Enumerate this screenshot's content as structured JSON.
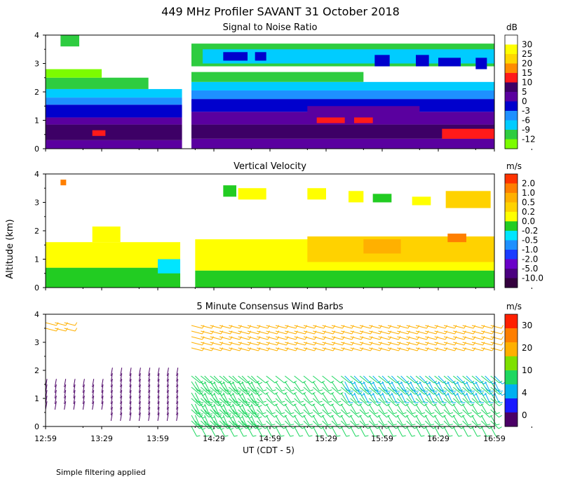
{
  "figure": {
    "title": "449 MHz Profiler SAVANT 31 October 2018",
    "ylabel": "Altitude (km)",
    "xlabel": "UT  (CDT - 5)",
    "footnote": "Simple filtering applied"
  },
  "colors": {
    "snr": [
      "#7cfc00",
      "#2ecc40",
      "#00ccff",
      "#1e90ff",
      "#0000cd",
      "#5a009f",
      "#3d0066",
      "#ff1a1a",
      "#ff8c00",
      "#ffd700",
      "#ffff00",
      "#ffffff"
    ],
    "vel": [
      "#33003d",
      "#4b0080",
      "#6a00c8",
      "#1a3cff",
      "#1e90ff",
      "#00e5ff",
      "#22cc22",
      "#ffff00",
      "#ffd200",
      "#ffb000",
      "#ff7f00",
      "#ff3300"
    ],
    "wind": [
      "#4b0066",
      "#1a1aff",
      "#00b0f0",
      "#1ed760",
      "#7ee000",
      "#ffb000",
      "#ff7f00",
      "#ff2000"
    ]
  },
  "chart_data": [
    {
      "type": "heatmap",
      "title": "Signal to Noise Ratio",
      "xlim": [
        0,
        240
      ],
      "ylim": [
        0,
        4
      ],
      "yticks": [
        "0",
        "1",
        "2",
        "3",
        "4"
      ],
      "xticks": [
        {
          "v": 0,
          "label": "12:59"
        },
        {
          "v": 30,
          "label": "13:29"
        },
        {
          "v": 60,
          "label": "13:59"
        },
        {
          "v": 90,
          "label": "14:29"
        },
        {
          "v": 120,
          "label": "14:59"
        },
        {
          "v": 150,
          "label": "15:29"
        },
        {
          "v": 180,
          "label": "15:59"
        },
        {
          "v": 210,
          "label": "16:29"
        },
        {
          "v": 240,
          "label": "16:59"
        }
      ],
      "colorbar": {
        "unit": "dB",
        "labels": [
          "30",
          "25",
          "20",
          "15",
          "10",
          "5",
          "0",
          "-3",
          "-6",
          "-9",
          "-12"
        ]
      },
      "gap": [
        73,
        78
      ],
      "regions": [
        {
          "t": [
            0,
            73
          ],
          "alt": [
            0,
            0.3
          ],
          "level": 5
        },
        {
          "t": [
            0,
            73
          ],
          "alt": [
            0.3,
            0.85
          ],
          "level": 6
        },
        {
          "t": [
            0,
            73
          ],
          "alt": [
            0.85,
            1.1
          ],
          "level": 5
        },
        {
          "t": [
            0,
            73
          ],
          "alt": [
            1.1,
            1.55
          ],
          "level": 4
        },
        {
          "t": [
            0,
            73
          ],
          "alt": [
            1.55,
            1.8
          ],
          "level": 3
        },
        {
          "t": [
            0,
            73
          ],
          "alt": [
            1.8,
            2.1
          ],
          "level": 2
        },
        {
          "t": [
            0,
            55
          ],
          "alt": [
            2.1,
            2.5
          ],
          "level": 1
        },
        {
          "t": [
            0,
            30
          ],
          "alt": [
            2.5,
            2.8
          ],
          "level": 0
        },
        {
          "t": [
            25,
            32
          ],
          "alt": [
            0.45,
            0.65
          ],
          "level": 7
        },
        {
          "t": [
            8,
            18
          ],
          "alt": [
            3.6,
            4.0
          ],
          "level": 1
        },
        {
          "t": [
            78,
            240
          ],
          "alt": [
            0,
            0.35
          ],
          "level": 5
        },
        {
          "t": [
            78,
            240
          ],
          "alt": [
            0.35,
            0.85
          ],
          "level": 6
        },
        {
          "t": [
            78,
            240
          ],
          "alt": [
            0.85,
            1.3
          ],
          "level": 5
        },
        {
          "t": [
            78,
            240
          ],
          "alt": [
            1.3,
            1.75
          ],
          "level": 4
        },
        {
          "t": [
            78,
            240
          ],
          "alt": [
            1.75,
            2.05
          ],
          "level": 3
        },
        {
          "t": [
            78,
            240
          ],
          "alt": [
            2.05,
            2.35
          ],
          "level": 2
        },
        {
          "t": [
            78,
            170
          ],
          "alt": [
            2.35,
            2.7
          ],
          "level": 1
        },
        {
          "t": [
            78,
            240
          ],
          "alt": [
            2.9,
            3.7
          ],
          "level": 1
        },
        {
          "t": [
            84,
            240
          ],
          "alt": [
            3.0,
            3.5
          ],
          "level": 2
        },
        {
          "t": [
            95,
            108
          ],
          "alt": [
            3.1,
            3.4
          ],
          "level": 4
        },
        {
          "t": [
            112,
            118
          ],
          "alt": [
            3.1,
            3.4
          ],
          "level": 4
        },
        {
          "t": [
            176,
            184
          ],
          "alt": [
            2.9,
            3.3
          ],
          "level": 4
        },
        {
          "t": [
            198,
            205
          ],
          "alt": [
            2.9,
            3.3
          ],
          "level": 4
        },
        {
          "t": [
            210,
            222
          ],
          "alt": [
            2.9,
            3.2
          ],
          "level": 4
        },
        {
          "t": [
            230,
            236
          ],
          "alt": [
            2.8,
            3.2
          ],
          "level": 4
        },
        {
          "t": [
            140,
            200
          ],
          "alt": [
            0.9,
            1.5
          ],
          "level": 5
        },
        {
          "t": [
            145,
            160
          ],
          "alt": [
            0.9,
            1.1
          ],
          "level": 7
        },
        {
          "t": [
            165,
            175
          ],
          "alt": [
            0.9,
            1.1
          ],
          "level": 7
        },
        {
          "t": [
            212,
            240
          ],
          "alt": [
            0.35,
            0.7
          ],
          "level": 7
        }
      ]
    },
    {
      "type": "heatmap",
      "title": "Vertical Velocity",
      "xlim": [
        0,
        240
      ],
      "ylim": [
        0,
        4
      ],
      "yticks": [
        "0",
        "1",
        "2",
        "3",
        "4"
      ],
      "colorbar": {
        "unit": "m/s",
        "labels": [
          "2.0",
          "1.0",
          "0.5",
          "0.2",
          "0.0",
          "-0.2",
          "-0.5",
          "-1.0",
          "-2.0",
          "-5.0",
          "-10.0"
        ]
      },
      "regions": [
        {
          "t": [
            0,
            72
          ],
          "alt": [
            0,
            0.7
          ],
          "level": 6
        },
        {
          "t": [
            0,
            72
          ],
          "alt": [
            0.7,
            1.6
          ],
          "level": 7
        },
        {
          "t": [
            25,
            40
          ],
          "alt": [
            1.6,
            2.15
          ],
          "level": 7
        },
        {
          "t": [
            8,
            11
          ],
          "alt": [
            3.6,
            3.8
          ],
          "level": 10
        },
        {
          "t": [
            60,
            72
          ],
          "alt": [
            0.5,
            1.0
          ],
          "level": 5
        },
        {
          "t": [
            80,
            240
          ],
          "alt": [
            0,
            0.6
          ],
          "level": 6
        },
        {
          "t": [
            80,
            240
          ],
          "alt": [
            0.6,
            1.7
          ],
          "level": 7
        },
        {
          "t": [
            140,
            240
          ],
          "alt": [
            0.9,
            1.8
          ],
          "level": 8
        },
        {
          "t": [
            170,
            190
          ],
          "alt": [
            1.2,
            1.7
          ],
          "level": 9
        },
        {
          "t": [
            215,
            225
          ],
          "alt": [
            1.6,
            1.9
          ],
          "level": 10
        },
        {
          "t": [
            95,
            102
          ],
          "alt": [
            3.2,
            3.6
          ],
          "level": 6
        },
        {
          "t": [
            103,
            118
          ],
          "alt": [
            3.1,
            3.5
          ],
          "level": 7
        },
        {
          "t": [
            140,
            150
          ],
          "alt": [
            3.1,
            3.5
          ],
          "level": 7
        },
        {
          "t": [
            162,
            170
          ],
          "alt": [
            3.0,
            3.4
          ],
          "level": 7
        },
        {
          "t": [
            175,
            185
          ],
          "alt": [
            3.0,
            3.3
          ],
          "level": 6
        },
        {
          "t": [
            196,
            206
          ],
          "alt": [
            2.9,
            3.2
          ],
          "level": 7
        },
        {
          "t": [
            214,
            238
          ],
          "alt": [
            2.8,
            3.4
          ],
          "level": 8
        }
      ]
    },
    {
      "type": "wind-barbs",
      "title": "5 Minute Consensus Wind Barbs",
      "xlim": [
        0,
        240
      ],
      "ylim": [
        0,
        4
      ],
      "yticks": [
        "0",
        "1",
        "2",
        "3",
        "4"
      ],
      "colorbar": {
        "unit": "m/s",
        "labels": [
          "30",
          "20",
          "10",
          "4",
          "0"
        ]
      },
      "groups": [
        {
          "t": [
            0,
            10
          ],
          "alt": [
            3.5,
            3.7
          ],
          "speed": 18
        },
        {
          "t": [
            0,
            30
          ],
          "alt": [
            0.6,
            1.4
          ],
          "speed": 2
        },
        {
          "t": [
            35,
            72
          ],
          "alt": [
            0.2,
            1.8
          ],
          "speed": 3
        },
        {
          "t": [
            78,
            240
          ],
          "alt": [
            0.0,
            1.8
          ],
          "speed": 9
        },
        {
          "t": [
            80,
            110
          ],
          "alt": [
            0.2,
            1.8
          ],
          "speed": 7
        },
        {
          "t": [
            160,
            240
          ],
          "alt": [
            1.2,
            1.8
          ],
          "speed": 5
        },
        {
          "t": [
            78,
            240
          ],
          "alt": [
            2.8,
            3.6
          ],
          "speed": 17
        }
      ]
    }
  ]
}
